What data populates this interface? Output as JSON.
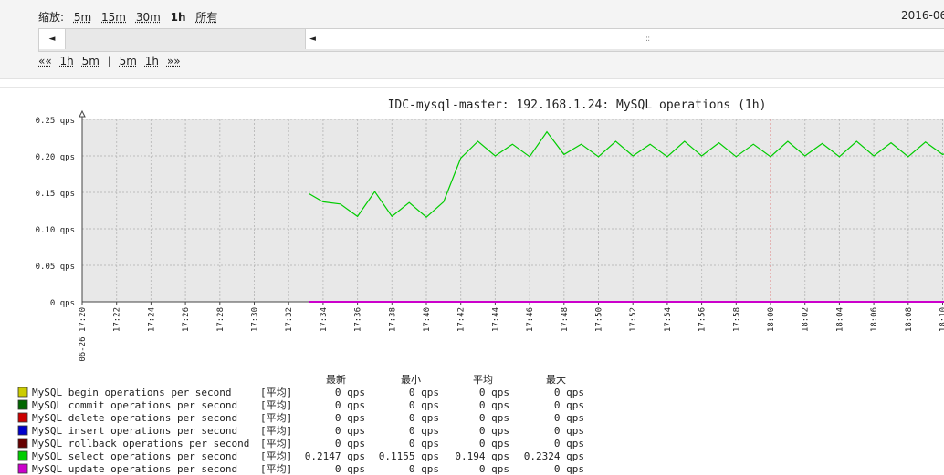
{
  "header": {
    "zoom_label": "缩放:",
    "zoom_options": [
      "5m",
      "15m",
      "30m",
      "1h",
      "所有"
    ],
    "zoom_active": "1h",
    "date": "2016-06-",
    "nav": {
      "prev": "««",
      "back_1h": "1h",
      "back_5m": "5m",
      "sep": "|",
      "fwd_5m": "5m",
      "fwd_1h": "1h",
      "next": "»»"
    },
    "scroll_left_arrow": "◄",
    "scroll_thumb_arrow": "◄",
    "scroll_grip": ":::"
  },
  "colors": {
    "accent_red": "#cc0000",
    "plot_bg": "#e8e8e8",
    "select_line": "#00cc00",
    "update_line": "#cc00cc"
  },
  "chart_data": {
    "type": "line",
    "title": "IDC-mysql-master: 192.168.1.24: MySQL operations (1h)",
    "yunit": "qps",
    "ylim": [
      0,
      0.25
    ],
    "yticks": [
      "0.25 qps",
      "0.20 qps",
      "0.15 qps",
      "0.10 qps",
      "0.05 qps",
      "0 qps"
    ],
    "ytick_values": [
      0.25,
      0.2,
      0.15,
      0.1,
      0.05,
      0
    ],
    "x_range_minutes": [
      0,
      51
    ],
    "xticks": [
      {
        "label": "06-26 17:20",
        "m": 0,
        "red": true
      },
      {
        "label": "17:22",
        "m": 2
      },
      {
        "label": "17:24",
        "m": 4
      },
      {
        "label": "17:26",
        "m": 6
      },
      {
        "label": "17:28",
        "m": 8
      },
      {
        "label": "17:30",
        "m": 10
      },
      {
        "label": "17:32",
        "m": 12
      },
      {
        "label": "17:34",
        "m": 14
      },
      {
        "label": "17:36",
        "m": 16
      },
      {
        "label": "17:38",
        "m": 18
      },
      {
        "label": "17:40",
        "m": 20
      },
      {
        "label": "17:42",
        "m": 22
      },
      {
        "label": "17:44",
        "m": 24
      },
      {
        "label": "17:46",
        "m": 26
      },
      {
        "label": "17:48",
        "m": 28
      },
      {
        "label": "17:50",
        "m": 30
      },
      {
        "label": "17:52",
        "m": 32
      },
      {
        "label": "17:54",
        "m": 34
      },
      {
        "label": "17:56",
        "m": 36
      },
      {
        "label": "17:58",
        "m": 38
      },
      {
        "label": "18:00",
        "m": 40,
        "red": true
      },
      {
        "label": "18:02",
        "m": 42
      },
      {
        "label": "18:04",
        "m": 44
      },
      {
        "label": "18:06",
        "m": 46
      },
      {
        "label": "18:08",
        "m": 48
      },
      {
        "label": "18:10",
        "m": 50
      }
    ],
    "series": [
      {
        "name": "MySQL select operations per second",
        "color": "#00cc00",
        "points": [
          [
            13.2,
            0.148
          ],
          [
            14.0,
            0.137
          ],
          [
            15.0,
            0.134
          ],
          [
            16.0,
            0.117
          ],
          [
            17.0,
            0.151
          ],
          [
            18.0,
            0.117
          ],
          [
            19.0,
            0.136
          ],
          [
            20.0,
            0.116
          ],
          [
            21.0,
            0.137
          ],
          [
            22.0,
            0.197
          ],
          [
            23.0,
            0.22
          ],
          [
            24.0,
            0.2
          ],
          [
            25.0,
            0.216
          ],
          [
            26.0,
            0.199
          ],
          [
            27.0,
            0.233
          ],
          [
            28.0,
            0.202
          ],
          [
            29.0,
            0.216
          ],
          [
            30.0,
            0.199
          ],
          [
            31.0,
            0.22
          ],
          [
            32.0,
            0.2
          ],
          [
            33.0,
            0.216
          ],
          [
            34.0,
            0.199
          ],
          [
            35.0,
            0.22
          ],
          [
            36.0,
            0.2
          ],
          [
            37.0,
            0.218
          ],
          [
            38.0,
            0.199
          ],
          [
            39.0,
            0.216
          ],
          [
            40.0,
            0.199
          ],
          [
            41.0,
            0.22
          ],
          [
            42.0,
            0.2
          ],
          [
            43.0,
            0.217
          ],
          [
            44.0,
            0.199
          ],
          [
            45.0,
            0.22
          ],
          [
            46.0,
            0.2
          ],
          [
            47.0,
            0.218
          ],
          [
            48.0,
            0.199
          ],
          [
            49.0,
            0.219
          ],
          [
            50.0,
            0.202
          ],
          [
            51.0,
            0.21
          ]
        ]
      },
      {
        "name": "MySQL update operations per second",
        "color": "#cc00cc",
        "points": [
          [
            13.2,
            0
          ],
          [
            51.0,
            0
          ]
        ]
      }
    ],
    "legend_headers": {
      "last": "最新",
      "min": "最小",
      "avg": "平均",
      "max": "最大"
    },
    "legend": [
      {
        "name": "MySQL begin operations per second",
        "color": "#cccc00",
        "func": "[平均]",
        "last": "0 qps",
        "min": "0 qps",
        "avg": "0 qps",
        "max": "0 qps"
      },
      {
        "name": "MySQL commit operations per second",
        "color": "#006600",
        "func": "[平均]",
        "last": "0 qps",
        "min": "0 qps",
        "avg": "0 qps",
        "max": "0 qps"
      },
      {
        "name": "MySQL delete operations per second",
        "color": "#cc0000",
        "func": "[平均]",
        "last": "0 qps",
        "min": "0 qps",
        "avg": "0 qps",
        "max": "0 qps"
      },
      {
        "name": "MySQL insert operations per second",
        "color": "#0000cc",
        "func": "[平均]",
        "last": "0 qps",
        "min": "0 qps",
        "avg": "0 qps",
        "max": "0 qps"
      },
      {
        "name": "MySQL rollback operations per second",
        "color": "#660000",
        "func": "[平均]",
        "last": "0 qps",
        "min": "0 qps",
        "avg": "0 qps",
        "max": "0 qps"
      },
      {
        "name": "MySQL select operations per second",
        "color": "#00cc00",
        "func": "[平均]",
        "last": "0.2147 qps",
        "min": "0.1155 qps",
        "avg": "0.194 qps",
        "max": "0.2324 qps"
      },
      {
        "name": "MySQL update operations per second",
        "color": "#cc00cc",
        "func": "[平均]",
        "last": "0 qps",
        "min": "0 qps",
        "avg": "0 qps",
        "max": "0 qps"
      }
    ]
  }
}
